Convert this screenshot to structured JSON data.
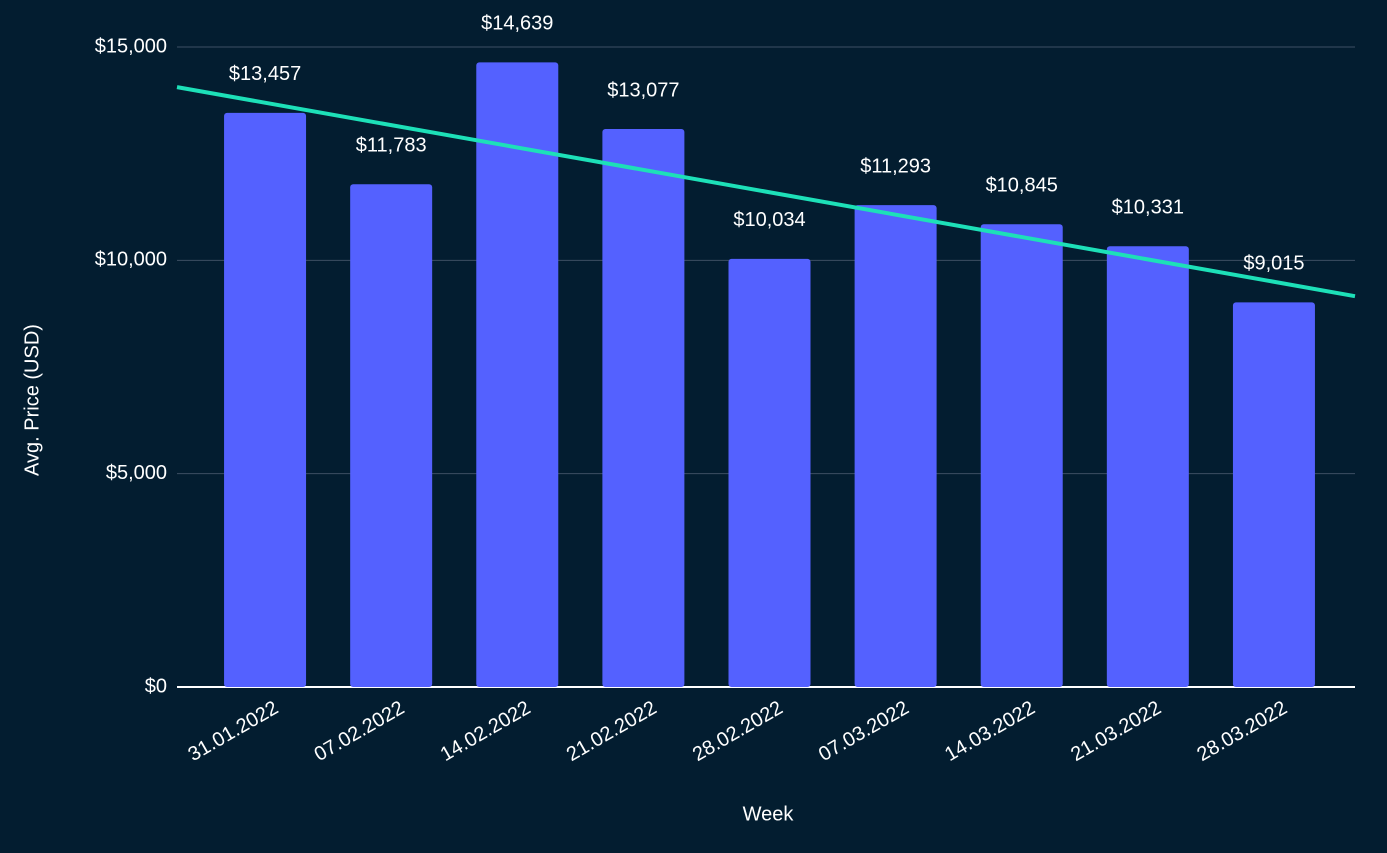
{
  "chart_data": {
    "type": "bar",
    "x_label": "Week",
    "y_label": "Avg. Price (USD)",
    "categories": [
      "31.01.2022",
      "07.02.2022",
      "14.02.2022",
      "21.02.2022",
      "28.02.2022",
      "07.03.2022",
      "14.03.2022",
      "21.03.2022",
      "28.03.2022"
    ],
    "values": [
      13457,
      11783,
      14639,
      13077,
      10034,
      11293,
      10845,
      10331,
      9015
    ],
    "value_labels": [
      "$13,457",
      "$11,783",
      "$14,639",
      "$13,077",
      "$10,034",
      "$11,293",
      "$10,845",
      "$10,331",
      "$9,015"
    ],
    "color": "#5461ff",
    "trendline": {
      "color": "#1de0b8",
      "values": [
        14060,
        9160
      ]
    },
    "ylim": [
      0,
      15000
    ],
    "yticks": [
      {
        "value": 0,
        "label": "$0"
      },
      {
        "value": 5000,
        "label": "$5,000"
      },
      {
        "value": 10000,
        "label": "$10,000"
      },
      {
        "value": 15000,
        "label": "$15,000"
      }
    ],
    "grid": true
  }
}
